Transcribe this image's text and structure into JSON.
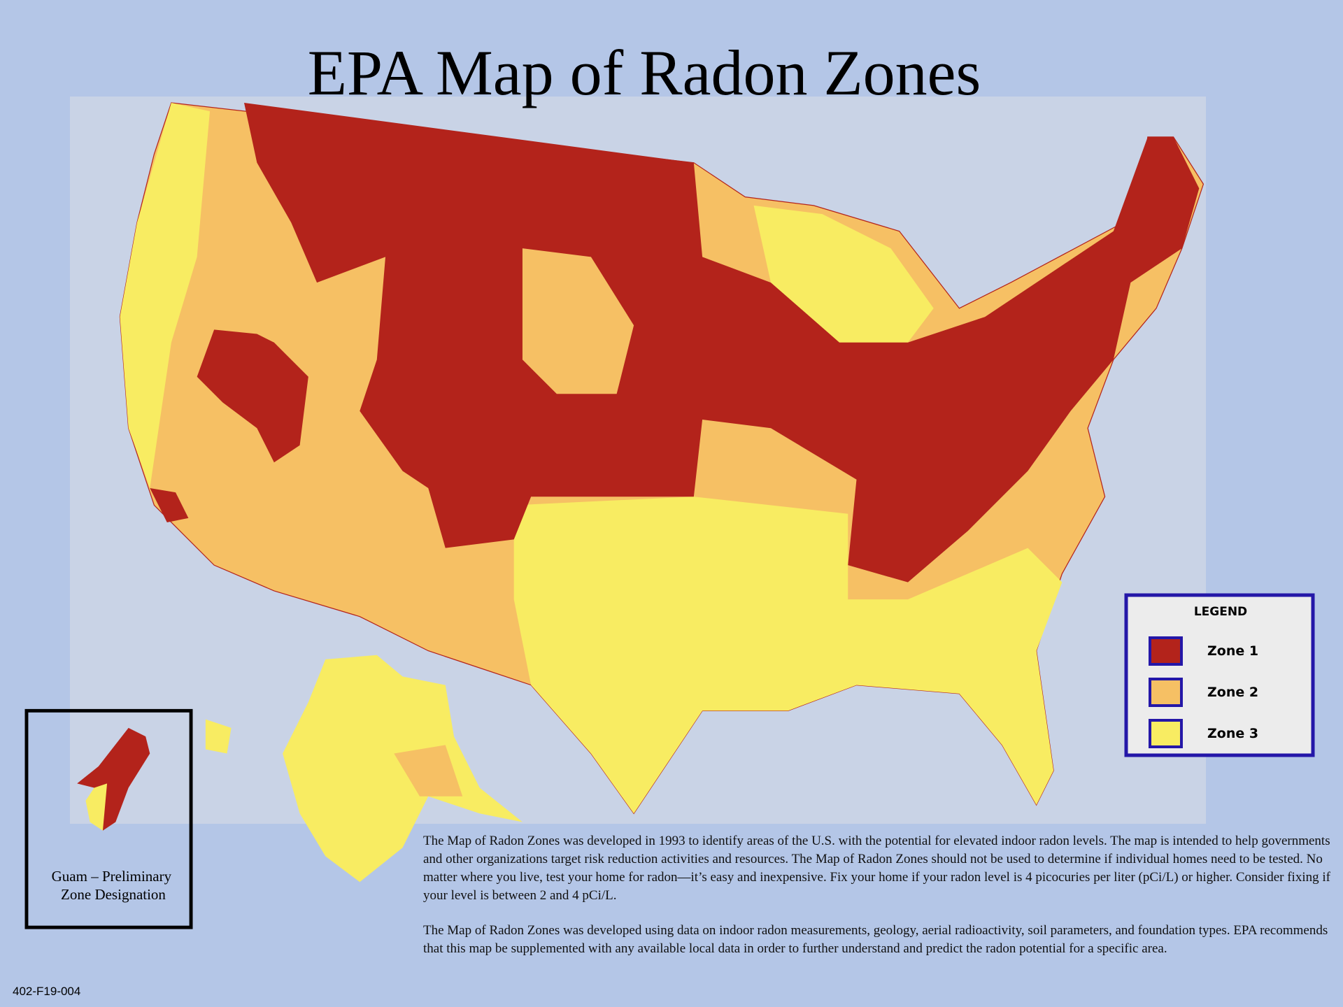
{
  "title": "EPA Map of Radon Zones",
  "legend": {
    "title": "LEGEND",
    "items": [
      {
        "label": "Zone 1",
        "color": "#b3231b"
      },
      {
        "label": "Zone 2",
        "color": "#f6c064"
      },
      {
        "label": "Zone 3",
        "color": "#f8ec62"
      }
    ]
  },
  "guam": {
    "lines": [
      "Guam – Preliminary",
      "Zone Designation"
    ]
  },
  "description": [
    "The Map of Radon Zones was developed in 1993 to identify areas of the U.S. with the potential for elevated indoor radon levels. The map is intended to help governments and other organizations target risk reduction activities and resources. The Map of Radon Zones should not be used to determine if individual homes need to be tested. No matter where you live, test your home for radon—it’s easy and inexpensive. Fix your home if your radon level is 4 picocuries per liter (pCi/L) or higher. Consider fixing if your level is between 2 and 4 pCi/L.",
    "The Map of Radon Zones was developed using data on indoor radon measurements, geology, aerial radioactivity, soil parameters, and foundation types. EPA recommends that this map be supplemented with any available local data in order to further understand and predict the radon potential for a specific area."
  ],
  "document_code": "402-F19-004"
}
